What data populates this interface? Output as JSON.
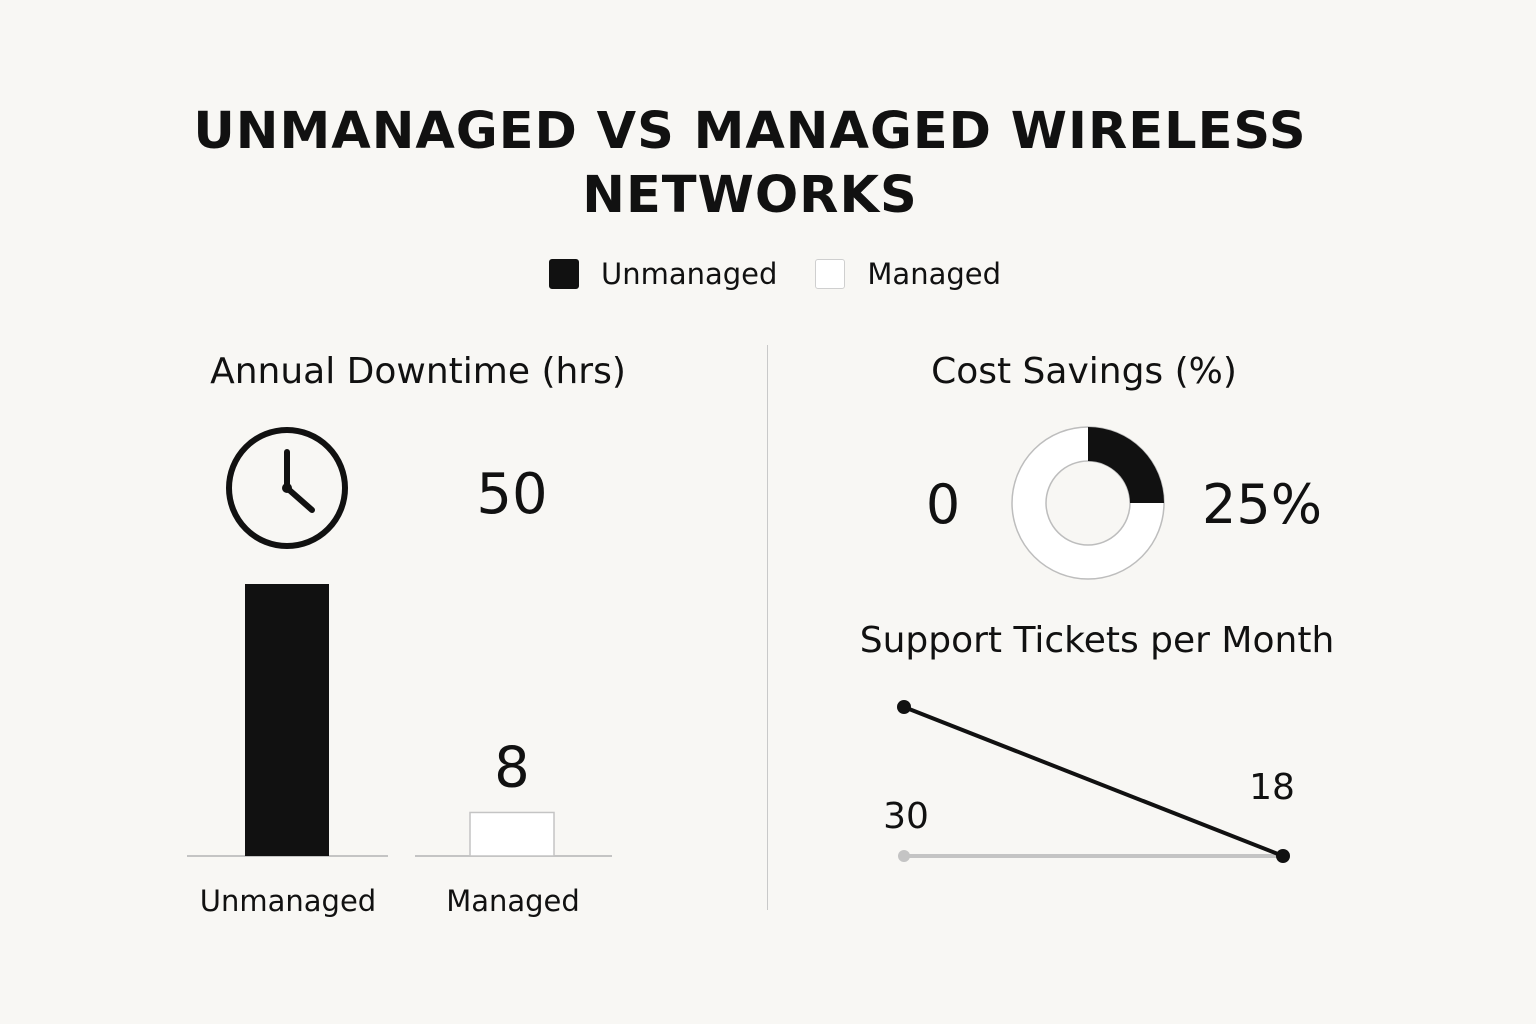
{
  "title": "UNMANAGED VS MANAGED WIRELESS NETWORKS",
  "legend": [
    {
      "label": "Unmanaged",
      "color": "#111111"
    },
    {
      "label": "Managed",
      "color": "#ffffff"
    }
  ],
  "chart_data": [
    {
      "type": "bar",
      "title": "Annual Downtime (hrs)",
      "categories": [
        "Unmanaged",
        "Managed"
      ],
      "values": [
        50,
        8
      ],
      "value_labels": [
        "50",
        "8"
      ],
      "colors": [
        "#111111",
        "#ffffff"
      ],
      "icon": "clock-icon"
    },
    {
      "type": "pie",
      "title": "Cost Savings (%)",
      "categories": [
        "Unmanaged",
        "Managed"
      ],
      "values": [
        0,
        25
      ],
      "value_labels": [
        "0",
        "25%"
      ],
      "colors": [
        "#111111",
        "#ffffff"
      ]
    },
    {
      "type": "line",
      "title": "Support Tickets per Month",
      "series": [
        {
          "values": [
            30,
            18
          ],
          "value_labels": [
            "30",
            "18"
          ],
          "color": "#111111"
        },
        {
          "values": [
            30,
            30
          ],
          "color": "#c4c4c4"
        }
      ]
    }
  ]
}
